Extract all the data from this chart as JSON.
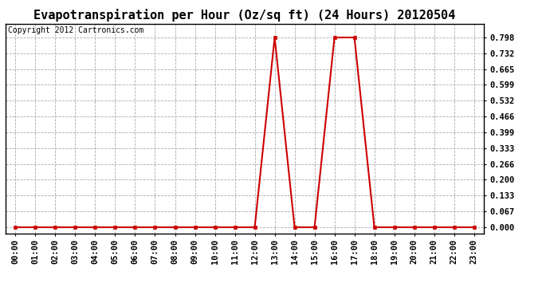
{
  "title": "Evapotranspiration per Hour (Oz/sq ft) (24 Hours) 20120504",
  "copyright": "Copyright 2012 Cartronics.com",
  "line_color": "#cc0000",
  "marker_color": "#cc0000",
  "bg_color": "#ffffff",
  "plot_bg_color": "#ffffff",
  "grid_color": "#aaaaaa",
  "hours": [
    0,
    1,
    2,
    3,
    4,
    5,
    6,
    7,
    8,
    9,
    10,
    11,
    12,
    13,
    14,
    15,
    16,
    17,
    18,
    19,
    20,
    21,
    22,
    23
  ],
  "values": [
    0,
    0,
    0,
    0,
    0,
    0,
    0,
    0,
    0,
    0,
    0,
    0,
    0,
    0.798,
    0,
    0,
    0.798,
    0.798,
    0,
    0,
    0,
    0,
    0,
    0
  ],
  "yticks": [
    0.0,
    0.067,
    0.133,
    0.2,
    0.266,
    0.333,
    0.399,
    0.466,
    0.532,
    0.599,
    0.665,
    0.732,
    0.798
  ],
  "ylim": [
    -0.025,
    0.855
  ],
  "title_fontsize": 11,
  "tick_fontsize": 7.5,
  "copyright_fontsize": 7
}
